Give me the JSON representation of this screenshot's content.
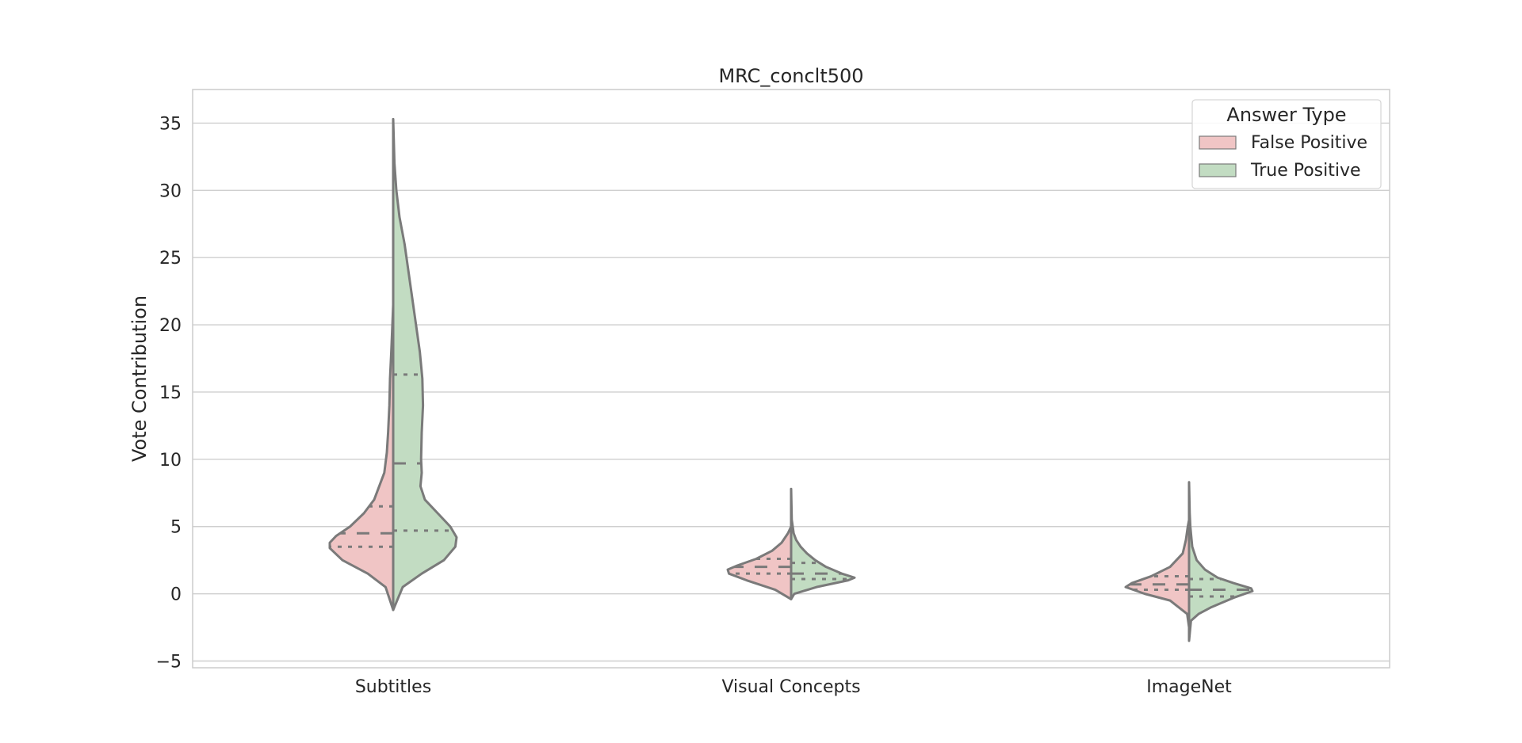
{
  "chart_data": {
    "type": "violin",
    "title": "MRC_conclt500",
    "xlabel": "",
    "ylabel": "Vote Contribution",
    "ylim": [
      -5.5,
      37.5
    ],
    "yticks": [
      -5,
      0,
      5,
      10,
      15,
      20,
      25,
      30,
      35
    ],
    "grid": "horizontal",
    "categories": [
      "Subtitles",
      "Visual Concepts",
      "ImageNet"
    ],
    "legend": {
      "title": "Answer Type",
      "position": "top-right",
      "entries": [
        "False Positive",
        "True Positive"
      ]
    },
    "series": [
      {
        "name": "False Positive",
        "color": "#f0c5c5",
        "side": "left",
        "violins": [
          {
            "category": "Subtitles",
            "range": [
              -1.2,
              21.5
            ],
            "quartiles": {
              "q1": 3.5,
              "median": 4.5,
              "q3": 6.5
            },
            "density_profile": [
              [
                -1.2,
                0.0
              ],
              [
                0.5,
                0.12
              ],
              [
                1.5,
                0.4
              ],
              [
                2.5,
                0.8
              ],
              [
                3.4,
                1.0
              ],
              [
                3.8,
                1.0
              ],
              [
                4.3,
                0.9
              ],
              [
                5.0,
                0.68
              ],
              [
                6.0,
                0.46
              ],
              [
                7.0,
                0.3
              ],
              [
                8.0,
                0.22
              ],
              [
                9.0,
                0.14
              ],
              [
                10.5,
                0.1
              ],
              [
                12.0,
                0.08
              ],
              [
                14.0,
                0.06
              ],
              [
                16.0,
                0.05
              ],
              [
                18.0,
                0.03
              ],
              [
                21.5,
                0.0
              ]
            ]
          },
          {
            "category": "Visual Concepts",
            "range": [
              -0.4,
              5.0
            ],
            "quartiles": {
              "q1": 1.5,
              "median": 2.0,
              "q3": 2.6
            },
            "density_profile": [
              [
                -0.4,
                0.0
              ],
              [
                0.3,
                0.25
              ],
              [
                1.0,
                0.7
              ],
              [
                1.5,
                0.98
              ],
              [
                1.8,
                1.0
              ],
              [
                2.1,
                0.85
              ],
              [
                2.6,
                0.55
              ],
              [
                3.2,
                0.3
              ],
              [
                3.8,
                0.15
              ],
              [
                4.5,
                0.05
              ],
              [
                5.0,
                0.0
              ]
            ]
          },
          {
            "category": "ImageNet",
            "range": [
              -2.5,
              5.5
            ],
            "quartiles": {
              "q1": 0.3,
              "median": 0.7,
              "q3": 1.3
            },
            "density_profile": [
              [
                -2.5,
                0.0
              ],
              [
                -1.5,
                0.03
              ],
              [
                -0.5,
                0.3
              ],
              [
                0.0,
                0.7
              ],
              [
                0.5,
                1.0
              ],
              [
                0.8,
                0.9
              ],
              [
                1.3,
                0.6
              ],
              [
                2.0,
                0.3
              ],
              [
                3.0,
                0.1
              ],
              [
                4.0,
                0.05
              ],
              [
                5.0,
                0.02
              ],
              [
                5.5,
                0.0
              ]
            ]
          }
        ]
      },
      {
        "name": "True Positive",
        "color": "#c2dcc2",
        "side": "right",
        "violins": [
          {
            "category": "Subtitles",
            "range": [
              -1.2,
              35.3
            ],
            "quartiles": {
              "q1": 4.7,
              "median": 9.7,
              "q3": 16.3
            },
            "density_profile": [
              [
                -1.2,
                0.0
              ],
              [
                0.5,
                0.15
              ],
              [
                1.5,
                0.45
              ],
              [
                2.5,
                0.8
              ],
              [
                3.5,
                0.98
              ],
              [
                4.2,
                1.0
              ],
              [
                5.0,
                0.9
              ],
              [
                6.0,
                0.7
              ],
              [
                7.0,
                0.5
              ],
              [
                8.0,
                0.43
              ],
              [
                9.0,
                0.45
              ],
              [
                10.0,
                0.44
              ],
              [
                12.0,
                0.45
              ],
              [
                14.0,
                0.47
              ],
              [
                16.0,
                0.46
              ],
              [
                18.0,
                0.42
              ],
              [
                20.0,
                0.36
              ],
              [
                22.0,
                0.3
              ],
              [
                24.0,
                0.24
              ],
              [
                26.0,
                0.18
              ],
              [
                28.0,
                0.1
              ],
              [
                30.0,
                0.05
              ],
              [
                32.0,
                0.02
              ],
              [
                35.3,
                0.0
              ]
            ]
          },
          {
            "category": "Visual Concepts",
            "range": [
              -0.4,
              7.8
            ],
            "quartiles": {
              "q1": 1.1,
              "median": 1.5,
              "q3": 2.3
            },
            "density_profile": [
              [
                -0.4,
                0.0
              ],
              [
                0.0,
                0.05
              ],
              [
                0.5,
                0.4
              ],
              [
                1.0,
                0.9
              ],
              [
                1.2,
                1.0
              ],
              [
                1.5,
                0.8
              ],
              [
                2.0,
                0.55
              ],
              [
                2.5,
                0.38
              ],
              [
                3.0,
                0.25
              ],
              [
                3.5,
                0.15
              ],
              [
                4.0,
                0.08
              ],
              [
                4.5,
                0.04
              ],
              [
                5.5,
                0.01
              ],
              [
                7.8,
                0.0
              ]
            ]
          },
          {
            "category": "ImageNet",
            "range": [
              -3.5,
              8.3
            ],
            "quartiles": {
              "q1": -0.2,
              "median": 0.3,
              "q3": 1.1
            },
            "density_profile": [
              [
                -3.5,
                0.0
              ],
              [
                -2.0,
                0.03
              ],
              [
                -1.5,
                0.15
              ],
              [
                -1.0,
                0.35
              ],
              [
                -0.3,
                0.7
              ],
              [
                0.2,
                1.0
              ],
              [
                0.4,
                0.98
              ],
              [
                0.8,
                0.7
              ],
              [
                1.2,
                0.45
              ],
              [
                1.8,
                0.25
              ],
              [
                2.5,
                0.12
              ],
              [
                3.5,
                0.05
              ],
              [
                5.0,
                0.02
              ],
              [
                6.0,
                0.01
              ],
              [
                8.3,
                0.0
              ]
            ]
          }
        ]
      }
    ]
  }
}
